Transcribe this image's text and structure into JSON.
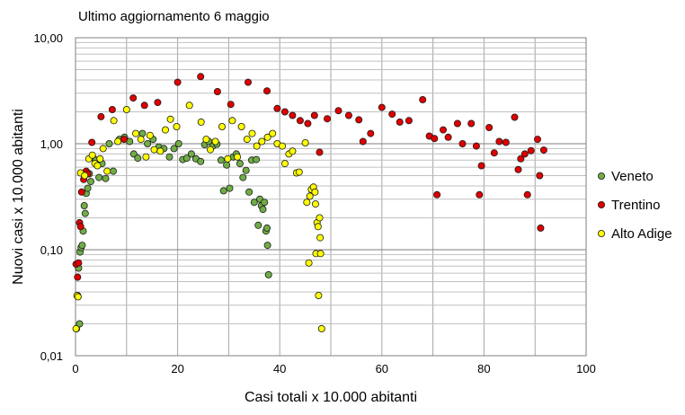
{
  "chart_data": {
    "type": "scatter",
    "title": "Ultimo aggiornamento 6 maggio",
    "xlabel": "Casi totali x 10.000 abitanti",
    "ylabel": "Nuovi casi x 10.000 abitanti",
    "xlim": [
      0,
      100
    ],
    "ylim": [
      0.01,
      10
    ],
    "yscale": "log",
    "grid": true,
    "legend_position": "right",
    "x_ticks": [
      "0",
      "20",
      "40",
      "60",
      "80",
      "100"
    ],
    "y_ticks": [
      "0,01",
      "0,10",
      "1,00",
      "10,00"
    ],
    "series": [
      {
        "name": "Veneto",
        "color": "#70ad47",
        "points": [
          [
            0.2,
            0.018
          ],
          [
            0.4,
            0.037
          ],
          [
            0.6,
            0.067
          ],
          [
            0.8,
            0.02
          ],
          [
            0.9,
            0.095
          ],
          [
            1.1,
            0.105
          ],
          [
            1.3,
            0.11
          ],
          [
            1.5,
            0.15
          ],
          [
            1.7,
            0.26
          ],
          [
            1.9,
            0.22
          ],
          [
            2.1,
            0.34
          ],
          [
            2.4,
            0.38
          ],
          [
            2.7,
            0.52
          ],
          [
            3.0,
            0.44
          ],
          [
            3.4,
            0.74
          ],
          [
            4.0,
            0.7
          ],
          [
            4.6,
            0.48
          ],
          [
            5.2,
            0.65
          ],
          [
            5.9,
            0.47
          ],
          [
            6.6,
            1.0
          ],
          [
            7.4,
            0.55
          ],
          [
            8.6,
            1.1
          ],
          [
            9.6,
            1.15
          ],
          [
            10.6,
            1.05
          ],
          [
            11.4,
            0.8
          ],
          [
            12.2,
            0.73
          ],
          [
            13.1,
            1.25
          ],
          [
            14.1,
            1.0
          ],
          [
            15.2,
            1.1
          ],
          [
            16.3,
            0.93
          ],
          [
            17.3,
            0.9
          ],
          [
            18.4,
            0.75
          ],
          [
            19.3,
            0.9
          ],
          [
            20.2,
            1.0
          ],
          [
            21.0,
            0.71
          ],
          [
            21.8,
            0.73
          ],
          [
            22.7,
            0.8
          ],
          [
            23.6,
            0.72
          ],
          [
            24.5,
            0.68
          ],
          [
            25.3,
            0.98
          ],
          [
            26.1,
            1.05
          ],
          [
            26.9,
            0.95
          ],
          [
            27.7,
            0.99
          ],
          [
            28.5,
            0.7
          ],
          [
            29.0,
            0.36
          ],
          [
            29.6,
            0.63
          ],
          [
            30.2,
            0.38
          ],
          [
            30.9,
            0.75
          ],
          [
            31.5,
            0.8
          ],
          [
            32.2,
            0.65
          ],
          [
            32.8,
            0.48
          ],
          [
            33.4,
            0.56
          ],
          [
            34.0,
            0.35
          ],
          [
            34.5,
            0.7
          ],
          [
            35.0,
            0.28
          ],
          [
            35.4,
            0.71
          ],
          [
            35.8,
            0.17
          ],
          [
            36.1,
            0.3
          ],
          [
            36.4,
            0.26
          ],
          [
            36.7,
            0.24
          ],
          [
            37.0,
            0.28
          ],
          [
            37.3,
            0.15
          ],
          [
            37.5,
            0.16
          ],
          [
            37.6,
            0.11
          ],
          [
            37.8,
            0.058
          ]
        ]
      },
      {
        "name": "Trentino",
        "color": "#e00000",
        "points": [
          [
            0.1,
            0.073
          ],
          [
            0.4,
            0.055
          ],
          [
            0.6,
            0.075
          ],
          [
            0.8,
            0.18
          ],
          [
            1.0,
            0.165
          ],
          [
            1.2,
            0.35
          ],
          [
            1.6,
            0.46
          ],
          [
            2.1,
            0.55
          ],
          [
            2.4,
            0.52
          ],
          [
            3.2,
            1.03
          ],
          [
            5.0,
            1.8
          ],
          [
            7.2,
            2.1
          ],
          [
            9.5,
            1.1
          ],
          [
            11.3,
            2.7
          ],
          [
            13.5,
            2.3
          ],
          [
            16.1,
            2.45
          ],
          [
            20.0,
            3.8
          ],
          [
            24.5,
            4.3
          ],
          [
            27.8,
            3.1
          ],
          [
            30.4,
            2.35
          ],
          [
            33.8,
            3.8
          ],
          [
            37.5,
            3.15
          ],
          [
            39.5,
            2.15
          ],
          [
            41.0,
            2.0
          ],
          [
            42.5,
            1.85
          ],
          [
            44.0,
            1.65
          ],
          [
            45.5,
            1.55
          ],
          [
            46.8,
            1.85
          ],
          [
            47.8,
            0.83
          ],
          [
            49.3,
            1.72
          ],
          [
            51.5,
            2.05
          ],
          [
            53.5,
            1.85
          ],
          [
            55.5,
            1.68
          ],
          [
            56.3,
            1.05
          ],
          [
            57.8,
            1.25
          ],
          [
            60.0,
            2.2
          ],
          [
            62.0,
            1.9
          ],
          [
            63.5,
            1.6
          ],
          [
            65.3,
            1.65
          ],
          [
            68.0,
            2.6
          ],
          [
            69.3,
            1.18
          ],
          [
            70.3,
            1.12
          ],
          [
            70.8,
            0.33
          ],
          [
            72.0,
            1.35
          ],
          [
            73.0,
            1.15
          ],
          [
            74.8,
            1.55
          ],
          [
            75.8,
            1.0
          ],
          [
            77.5,
            1.55
          ],
          [
            78.5,
            0.95
          ],
          [
            79.1,
            0.33
          ],
          [
            79.5,
            0.62
          ],
          [
            81.0,
            1.42
          ],
          [
            82.0,
            0.82
          ],
          [
            83.0,
            1.05
          ],
          [
            84.3,
            1.03
          ],
          [
            86.0,
            1.78
          ],
          [
            86.7,
            0.57
          ],
          [
            87.2,
            0.72
          ],
          [
            88.0,
            0.8
          ],
          [
            88.5,
            0.33
          ],
          [
            89.2,
            0.86
          ],
          [
            90.5,
            1.1
          ],
          [
            90.9,
            0.5
          ],
          [
            91.1,
            0.16
          ],
          [
            91.7,
            0.87
          ]
        ]
      },
      {
        "name": "Alto Adige",
        "color": "#ffff00",
        "points": [
          [
            0.1,
            0.018
          ],
          [
            0.3,
            0.037
          ],
          [
            0.5,
            0.036
          ],
          [
            1.0,
            0.53
          ],
          [
            1.8,
            0.5
          ],
          [
            2.6,
            0.72
          ],
          [
            3.3,
            0.78
          ],
          [
            3.8,
            0.65
          ],
          [
            4.3,
            0.62
          ],
          [
            4.8,
            0.72
          ],
          [
            5.4,
            0.9
          ],
          [
            6.2,
            0.55
          ],
          [
            7.5,
            1.65
          ],
          [
            8.3,
            1.05
          ],
          [
            10.0,
            2.1
          ],
          [
            11.8,
            1.25
          ],
          [
            12.8,
            1.1
          ],
          [
            13.8,
            0.75
          ],
          [
            14.6,
            1.2
          ],
          [
            15.4,
            0.88
          ],
          [
            16.6,
            0.85
          ],
          [
            17.6,
            1.35
          ],
          [
            18.6,
            1.7
          ],
          [
            19.8,
            1.45
          ],
          [
            22.3,
            2.3
          ],
          [
            24.6,
            1.6
          ],
          [
            25.6,
            1.1
          ],
          [
            26.4,
            0.88
          ],
          [
            27.4,
            1.05
          ],
          [
            28.7,
            1.45
          ],
          [
            29.8,
            0.72
          ],
          [
            30.7,
            1.65
          ],
          [
            31.7,
            0.75
          ],
          [
            32.5,
            1.45
          ],
          [
            33.6,
            1.1
          ],
          [
            34.6,
            1.25
          ],
          [
            35.5,
            0.95
          ],
          [
            36.5,
            1.05
          ],
          [
            37.6,
            1.15
          ],
          [
            38.6,
            1.25
          ],
          [
            39.5,
            1.0
          ],
          [
            40.5,
            0.95
          ],
          [
            41.0,
            0.65
          ],
          [
            41.8,
            0.8
          ],
          [
            42.5,
            0.85
          ],
          [
            43.3,
            0.53
          ],
          [
            43.8,
            0.54
          ],
          [
            45.0,
            1.02
          ],
          [
            45.3,
            0.28
          ],
          [
            45.7,
            0.075
          ],
          [
            45.9,
            0.32
          ],
          [
            46.2,
            0.37
          ],
          [
            46.6,
            0.39
          ],
          [
            46.9,
            0.35
          ],
          [
            47.0,
            0.27
          ],
          [
            47.1,
            0.092
          ],
          [
            47.3,
            0.18
          ],
          [
            47.5,
            0.165
          ],
          [
            47.6,
            0.037
          ],
          [
            47.8,
            0.2
          ],
          [
            47.9,
            0.13
          ],
          [
            48.0,
            0.092
          ],
          [
            48.2,
            0.018
          ]
        ]
      }
    ]
  }
}
